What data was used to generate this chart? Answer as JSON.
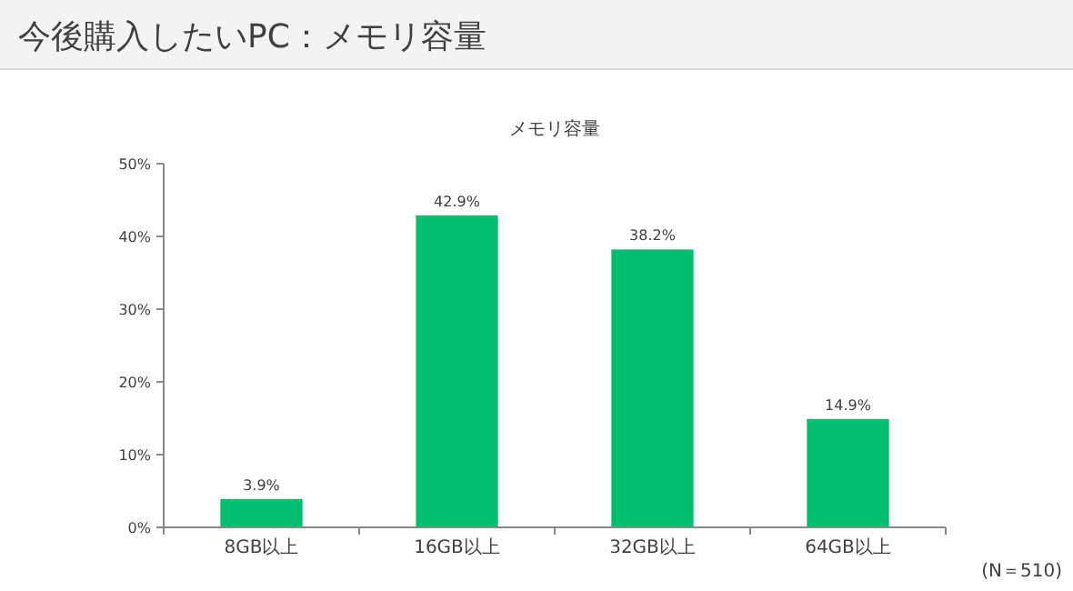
{
  "chart_data": {
    "type": "bar",
    "title": "今後購入したいPC：メモリ容量",
    "subtitle": "メモリ容量",
    "categories": [
      "8GB以上",
      "16GB以上",
      "32GB以上",
      "64GB以上"
    ],
    "values": [
      3.9,
      42.9,
      38.2,
      14.9
    ],
    "value_labels": [
      "3.9%",
      "42.9%",
      "38.2%",
      "14.9%"
    ],
    "color": "#00bf6f",
    "ylim": [
      0,
      50
    ],
    "yticks": [
      {
        "value": 0,
        "label": "0%"
      },
      {
        "value": 10,
        "label": "10%"
      },
      {
        "value": 20,
        "label": "20%"
      },
      {
        "value": 30,
        "label": "30%"
      },
      {
        "value": 40,
        "label": "40%"
      },
      {
        "value": 50,
        "label": "50%"
      }
    ],
    "annotations": [
      "(N＝510)"
    ],
    "grid": false
  }
}
